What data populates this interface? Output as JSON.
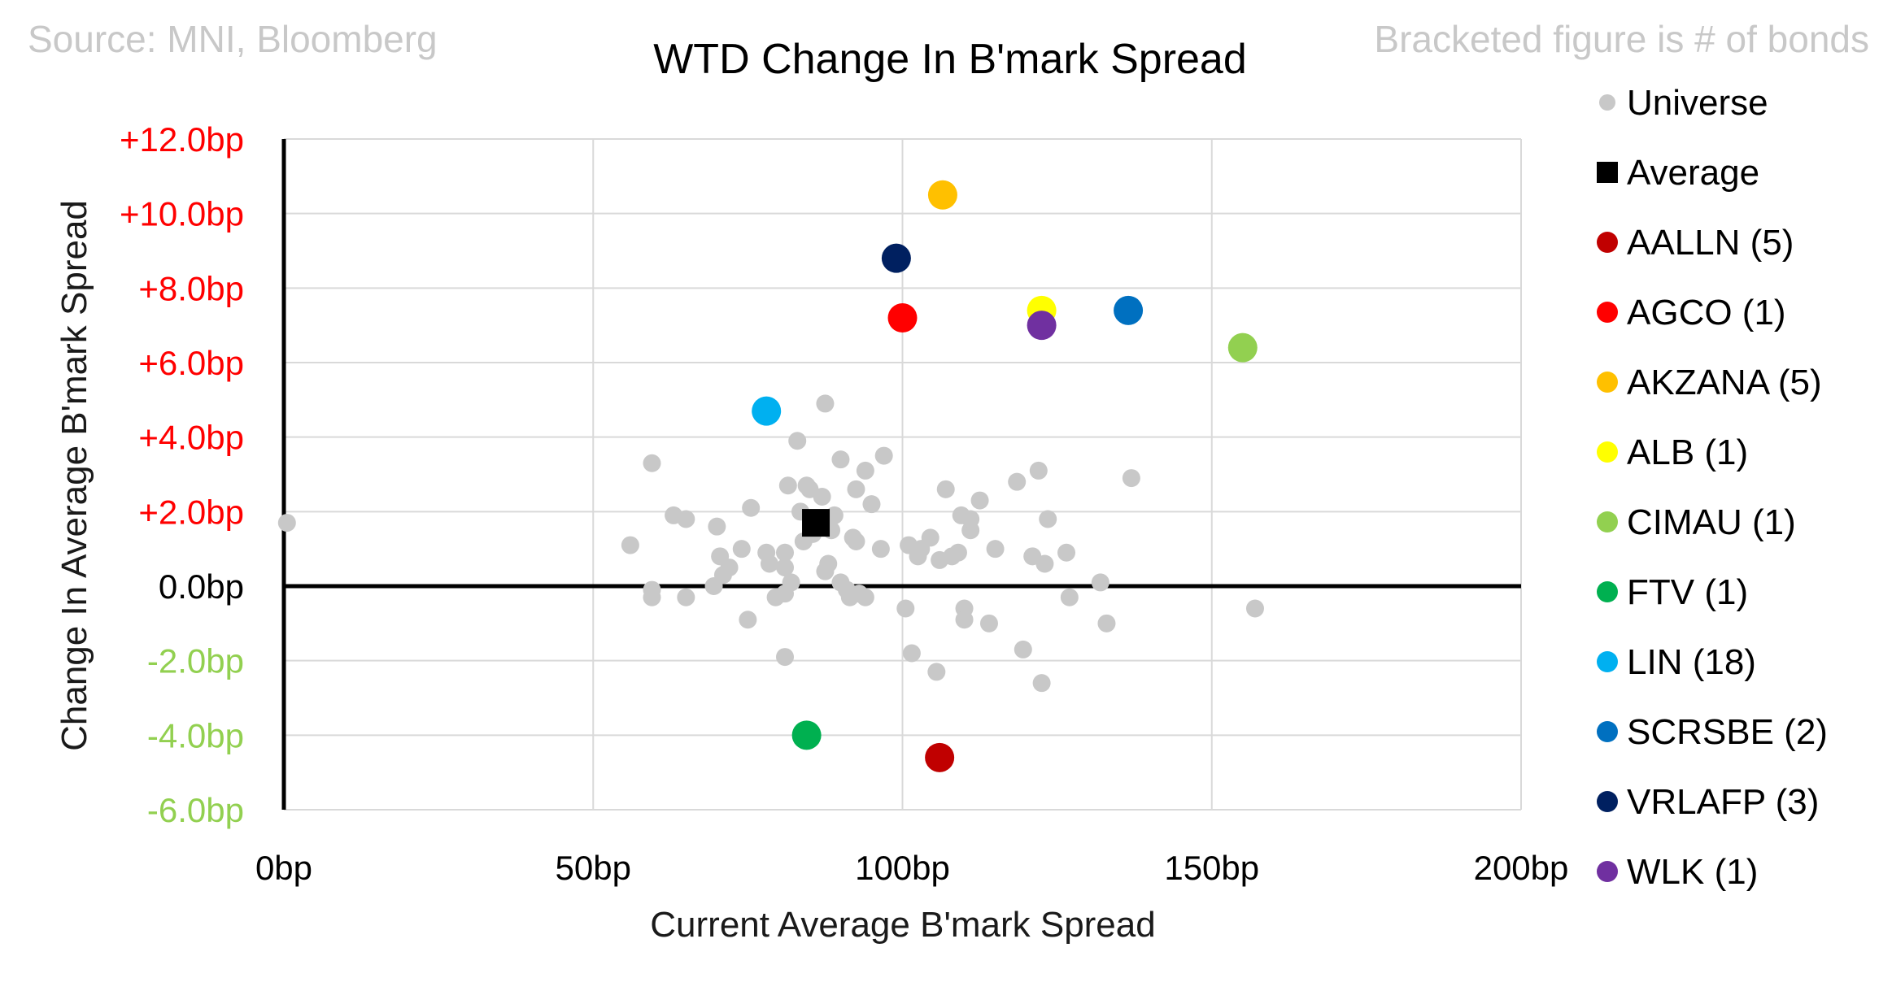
{
  "source_note": "Source: MNI, Bloomberg",
  "bracket_note": "Bracketed figure is # of bonds",
  "chart_data": {
    "type": "scatter",
    "title": "WTD Change In B'mark Spread",
    "xlabel": "Current Average B'mark Spread",
    "ylabel": "Change In Average B'mark Spread",
    "xlim": [
      0,
      200
    ],
    "ylim": [
      -6,
      12
    ],
    "x_ticks": [
      {
        "value": 0,
        "label": "0bp"
      },
      {
        "value": 50,
        "label": "50bp"
      },
      {
        "value": 100,
        "label": "100bp"
      },
      {
        "value": 150,
        "label": "150bp"
      },
      {
        "value": 200,
        "label": "200bp"
      }
    ],
    "y_ticks": [
      {
        "value": 12,
        "label": "+12.0bp",
        "color": "#ff0000"
      },
      {
        "value": 10,
        "label": "+10.0bp",
        "color": "#ff0000"
      },
      {
        "value": 8,
        "label": "+8.0bp",
        "color": "#ff0000"
      },
      {
        "value": 6,
        "label": "+6.0bp",
        "color": "#ff0000"
      },
      {
        "value": 4,
        "label": "+4.0bp",
        "color": "#ff0000"
      },
      {
        "value": 2,
        "label": "+2.0bp",
        "color": "#ff0000"
      },
      {
        "value": 0,
        "label": "0.0bp",
        "color": "#000000"
      },
      {
        "value": -2,
        "label": "-2.0bp",
        "color": "#92d050"
      },
      {
        "value": -4,
        "label": "-4.0bp",
        "color": "#92d050"
      },
      {
        "value": -6,
        "label": "-6.0bp",
        "color": "#92d050"
      }
    ],
    "grid": true,
    "legend_position": "right",
    "series": [
      {
        "name": "Universe",
        "color": "#c8c8c8",
        "marker": "circle",
        "points": [
          [
            0.5,
            1.7
          ],
          [
            56,
            1.1
          ],
          [
            59.5,
            3.3
          ],
          [
            59.5,
            -0.1
          ],
          [
            59.5,
            -0.3
          ],
          [
            63,
            1.9
          ],
          [
            65,
            1.8
          ],
          [
            65,
            -0.3
          ],
          [
            69.5,
            0
          ],
          [
            70,
            1.6
          ],
          [
            70.5,
            0.8
          ],
          [
            71,
            0.3
          ],
          [
            72,
            0.5
          ],
          [
            74,
            1
          ],
          [
            75,
            -0.9
          ],
          [
            75.5,
            2.1
          ],
          [
            78,
            0.9
          ],
          [
            78.5,
            0.6
          ],
          [
            79.5,
            -0.3
          ],
          [
            81,
            0.9
          ],
          [
            81,
            0.5
          ],
          [
            81,
            -0.2
          ],
          [
            81,
            -1.9
          ],
          [
            81.5,
            2.7
          ],
          [
            82,
            0.1
          ],
          [
            83,
            3.9
          ],
          [
            83.5,
            2
          ],
          [
            84,
            1.2
          ],
          [
            84.5,
            2.7
          ],
          [
            85,
            2.6
          ],
          [
            85.5,
            1.4
          ],
          [
            87,
            2.4
          ],
          [
            87.5,
            0.4
          ],
          [
            87.5,
            4.9
          ],
          [
            88,
            0.6
          ],
          [
            88.5,
            1.5
          ],
          [
            89,
            1.9
          ],
          [
            90,
            3.4
          ],
          [
            90,
            0.1
          ],
          [
            91,
            -0.1
          ],
          [
            91.5,
            -0.3
          ],
          [
            92,
            1.3
          ],
          [
            92.5,
            2.6
          ],
          [
            92.5,
            1.2
          ],
          [
            93,
            -0.2
          ],
          [
            94,
            -0.3
          ],
          [
            94,
            3.1
          ],
          [
            95,
            2.2
          ],
          [
            96.5,
            1
          ],
          [
            97,
            3.5
          ],
          [
            100.5,
            -0.6
          ],
          [
            101,
            1.1
          ],
          [
            101.5,
            -1.8
          ],
          [
            102.5,
            0.8
          ],
          [
            103,
            1
          ],
          [
            104.5,
            1.3
          ],
          [
            105.5,
            -2.3
          ],
          [
            106,
            0.7
          ],
          [
            107,
            2.6
          ],
          [
            108,
            0.8
          ],
          [
            109,
            0.9
          ],
          [
            109.5,
            1.9
          ],
          [
            110,
            -0.6
          ],
          [
            110,
            -0.9
          ],
          [
            111,
            1.5
          ],
          [
            111,
            1.8
          ],
          [
            112.5,
            2.3
          ],
          [
            114,
            -1
          ],
          [
            115,
            1
          ],
          [
            118.5,
            2.8
          ],
          [
            119.5,
            -1.7
          ],
          [
            121,
            0.8
          ],
          [
            122,
            3.1
          ],
          [
            122.5,
            -2.6
          ],
          [
            123,
            0.6
          ],
          [
            123.5,
            1.8
          ],
          [
            126.5,
            0.9
          ],
          [
            127,
            -0.3
          ],
          [
            132,
            0.1
          ],
          [
            133,
            -1
          ],
          [
            137,
            2.9
          ],
          [
            157,
            -0.6
          ]
        ]
      },
      {
        "name": "Average",
        "color": "#000000",
        "marker": "square",
        "points": [
          [
            86,
            1.7
          ]
        ]
      },
      {
        "name": "AALLN",
        "count": "(5)",
        "color": "#c00000",
        "marker": "circle",
        "points": [
          [
            106,
            -4.6
          ]
        ]
      },
      {
        "name": "AGCO",
        "count": "(1)",
        "color": "#ff0000",
        "marker": "circle",
        "points": [
          [
            100,
            7.2
          ]
        ]
      },
      {
        "name": "AKZANA",
        "count": "(5)",
        "color": "#ffc000",
        "marker": "circle",
        "points": [
          [
            106.5,
            10.5
          ]
        ]
      },
      {
        "name": "ALB",
        "count": "(1)",
        "color": "#ffff00",
        "marker": "circle",
        "points": [
          [
            122.5,
            7.4
          ]
        ]
      },
      {
        "name": "CIMAU",
        "count": "(1)",
        "color": "#92d050",
        "marker": "circle",
        "points": [
          [
            155,
            6.4
          ]
        ]
      },
      {
        "name": "FTV",
        "count": "(1)",
        "color": "#00b050",
        "marker": "circle",
        "points": [
          [
            84.5,
            -4
          ]
        ]
      },
      {
        "name": "LIN",
        "count": "(18)",
        "color": "#00b0f0",
        "marker": "circle",
        "points": [
          [
            78,
            4.7
          ]
        ]
      },
      {
        "name": "SCRSBE",
        "count": "(2)",
        "color": "#0070c0",
        "marker": "circle",
        "points": [
          [
            136.5,
            7.4
          ]
        ]
      },
      {
        "name": "VRLAFP",
        "count": "(3)",
        "color": "#002060",
        "marker": "circle",
        "points": [
          [
            99,
            8.8
          ]
        ]
      },
      {
        "name": "WLK",
        "count": "(1)",
        "color": "#7030a0",
        "marker": "circle",
        "points": [
          [
            122.5,
            7
          ]
        ]
      }
    ]
  }
}
